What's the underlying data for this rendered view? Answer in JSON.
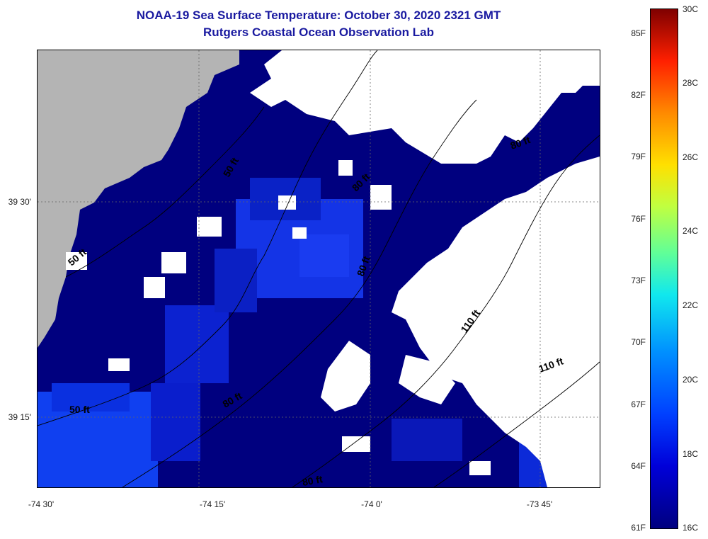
{
  "title": "NOAA-19 Sea Surface Temperature:  October 30, 2020 2321 GMT",
  "subtitle": "Rutgers Coastal Ocean Observation Lab",
  "axes": {
    "y_ticks": [
      "39 30'",
      "39 15'"
    ],
    "x_ticks": [
      "-74 30'",
      "-74 15'",
      "-74 0'",
      "-73 45'"
    ]
  },
  "contours": [
    "50 ft",
    "50 ft",
    "50 ft",
    "80 ft",
    "80 ft",
    "80 ft",
    "80 ft",
    "80 ft",
    "110 ft",
    "110 ft"
  ],
  "colorbar": {
    "fahrenheit": [
      "85F",
      "82F",
      "79F",
      "76F",
      "73F",
      "70F",
      "67F",
      "64F",
      "61F"
    ],
    "celsius": [
      "30C",
      "28C",
      "26C",
      "24C",
      "22C",
      "20C",
      "18C",
      "16C"
    ]
  },
  "colors": {
    "title": "#1a1aa0",
    "land": "#b4b4b4",
    "cloud": "#ffffff",
    "sst_coldest": "#00007f"
  }
}
